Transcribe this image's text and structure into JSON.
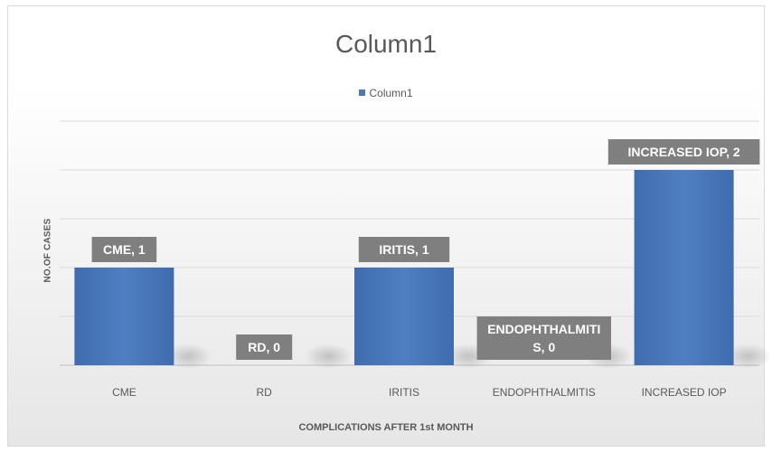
{
  "chart_data": {
    "type": "bar",
    "title": "Column1",
    "legend": {
      "position": "top",
      "entries": [
        "Column1"
      ]
    },
    "xlabel": "COMPLICATIONS AFTER 1st MONTH",
    "ylabel": "NO.OF CASES",
    "categories": [
      "CME",
      "RD",
      "IRITIS",
      "ENDOPHTHALMITIS",
      "INCREASED IOP"
    ],
    "series": [
      {
        "name": "Column1",
        "values": [
          1,
          0,
          1,
          0,
          2
        ]
      }
    ],
    "data_labels": [
      [
        "CME, 1"
      ],
      [
        "RD, 0"
      ],
      [
        "IRITIS, 1"
      ],
      [
        "ENDOPHTHALMITI",
        "S, 0"
      ],
      [
        "INCREASED IOP, 2"
      ]
    ],
    "ylim": [
      0,
      2.5
    ],
    "grid": true,
    "colors": {
      "bar": "#4a78b8",
      "label_box": "#7f7f7f",
      "grid": "#d9d9d9"
    }
  }
}
